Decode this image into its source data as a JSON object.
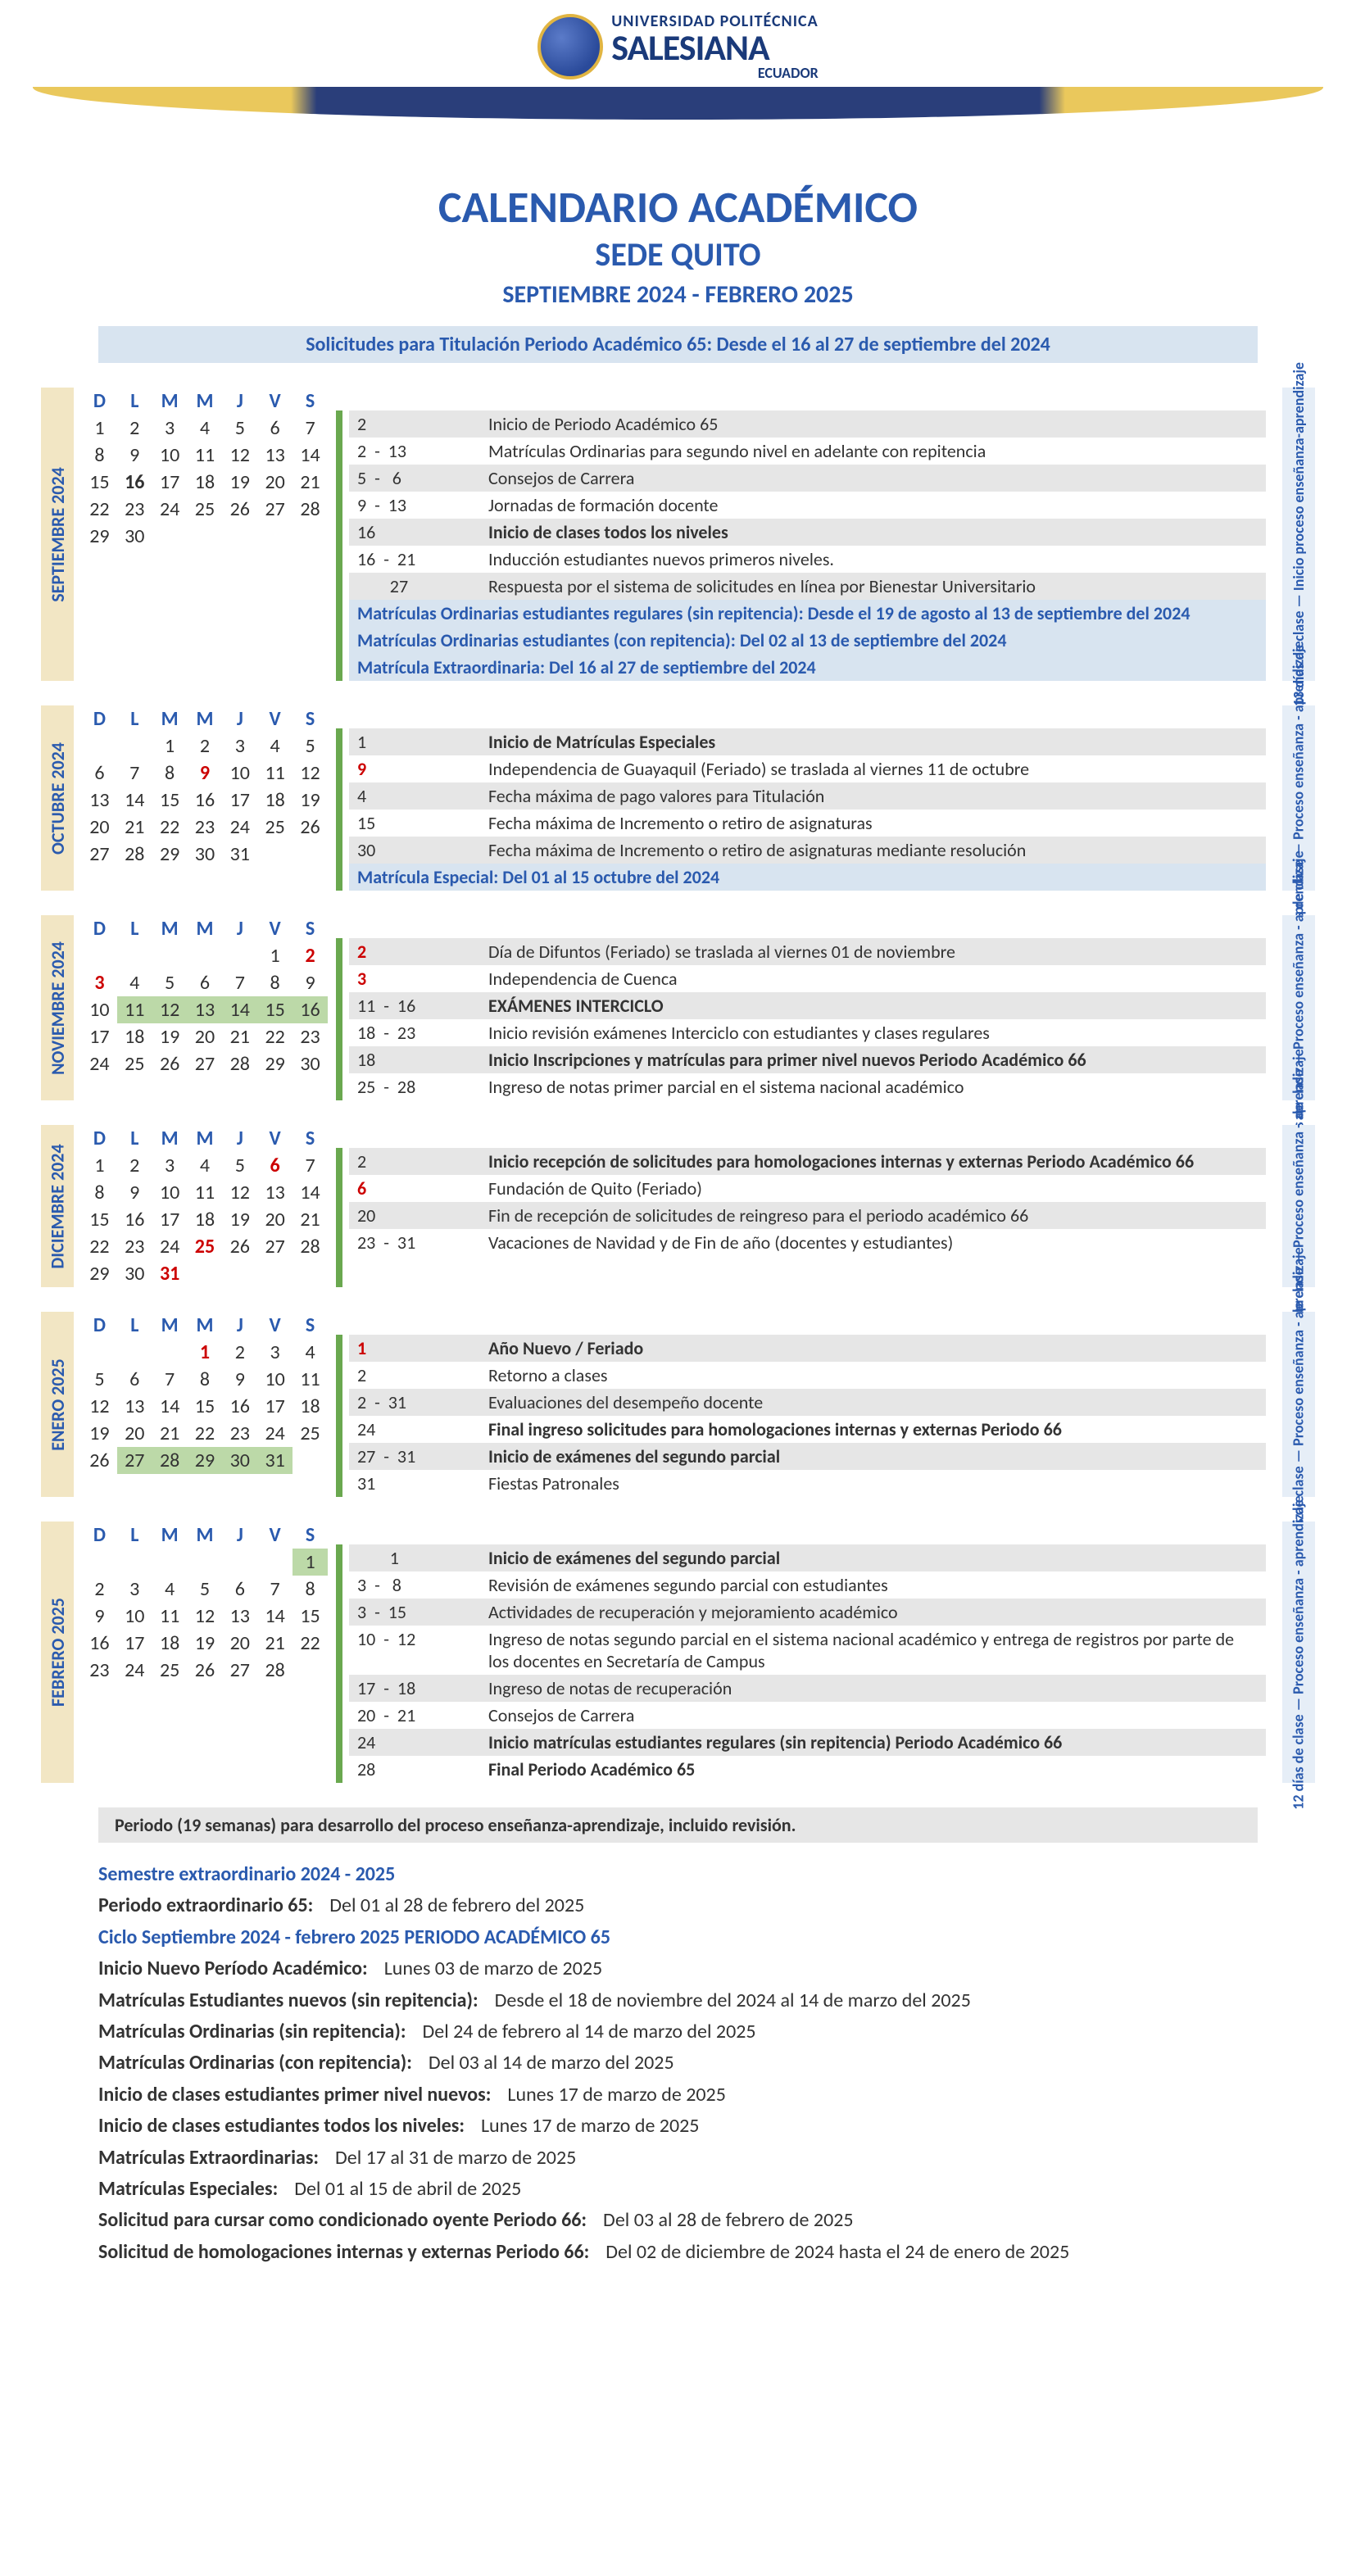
{
  "logo": {
    "line1": "UNIVERSIDAD POLITÉCNICA",
    "line2": "SALESIANA",
    "line3": "ECUADOR"
  },
  "title1": "CALENDARIO ACADÉMICO",
  "title2": "SEDE QUITO",
  "title3": "SEPTIEMBRE 2024 - FEBRERO 2025",
  "banner": "Solicitudes para Titulación Periodo Académico 65: Desde el 16 al 27  de septiembre del 2024",
  "dayHeaders": [
    "D",
    "L",
    "M",
    "M",
    "J",
    "V",
    "S"
  ],
  "colors": {
    "brand_blue": "#2a5aae",
    "cream": "#f2e6c4",
    "green_bar": "#6aa84f",
    "grey_row": "#e6e6e6",
    "blue_row": "#d8e4f0",
    "light_blue_side": "#e6eef7",
    "red": "#c00",
    "hl_green": "#bcd9a8"
  },
  "months": [
    {
      "label": "SEPTIEMBRE 2024",
      "side": "13 días de clase — Inicio proceso enseñanza-aprendizaje",
      "startDow": 0,
      "numDays": 30,
      "red": [],
      "bold": [
        16
      ],
      "hl": [],
      "events": [
        {
          "r": "2",
          "t": "Inicio de Periodo Académico 65",
          "g": true
        },
        {
          "r": "2  -  13",
          "t": "Matrículas Ordinarias para segundo nivel en adelante con repitencia"
        },
        {
          "r": "5  -   6",
          "t": "Consejos de Carrera",
          "g": true
        },
        {
          "r": "9  -  13",
          "t": "Jornadas de formación docente"
        },
        {
          "r": "16",
          "t": "Inicio de clases todos los niveles",
          "g": true,
          "b": true
        },
        {
          "r": "16  -  21",
          "t": "Inducción estudiantes nuevos primeros niveles."
        },
        {
          "r": "        27",
          "t": "Respuesta por el sistema de solicitudes en línea por Bienestar Universitario",
          "g": true
        },
        {
          "blue": true,
          "t": "Matrículas Ordinarias estudiantes regulares (sin repitencia): Desde el 19 de agosto al 13 de septiembre del 2024"
        },
        {
          "blue": true,
          "t": "Matrículas Ordinarias estudiantes (con repitencia): Del 02 al 13 de septiembre del 2024"
        },
        {
          "blue": true,
          "t": "Matrícula Extraordinaria: Del 16 al 27 de septiembre del 2024"
        }
      ]
    },
    {
      "label": "OCTUBRE 2024",
      "side": "26  días de clase — Proceso enseñanza - aprendizaje",
      "startDow": 2,
      "numDays": 31,
      "red": [
        9
      ],
      "bold": [],
      "hl": [],
      "events": [
        {
          "r": "1",
          "t": "Inicio de Matrículas Especiales",
          "g": true,
          "b": true
        },
        {
          "r": "9",
          "t": "Independencia de Guayaquil (Feriado) se traslada al viernes 11 de octubre",
          "red": true
        },
        {
          "r": "4",
          "t": "Fecha máxima de pago valores para Titulación",
          "g": true
        },
        {
          "r": "15",
          "t": "Fecha máxima de Incremento o retiro de asignaturas"
        },
        {
          "r": "30",
          "t": "Fecha máxima de Incremento o retiro de asignaturas mediante resolución",
          "g": true
        },
        {
          "blue": true,
          "t": "Matrícula Especial: Del 01 al 15 octubre del 2024"
        }
      ]
    },
    {
      "label": "NOVIEMBRE 2024",
      "side": "19  días de clase — Proceso enseñanza - aprendizaje",
      "startDow": 5,
      "numDays": 30,
      "red": [
        2,
        3
      ],
      "bold": [],
      "hl": [
        11,
        12,
        13,
        14,
        15,
        16
      ],
      "events": [
        {
          "r": "2",
          "t": "Día de Difuntos (Feriado) se traslada al viernes 01 de noviembre",
          "g": true,
          "red": true
        },
        {
          "r": "3",
          "t": "Independencia de Cuenca",
          "red": true
        },
        {
          "r": "11  -  16",
          "t": "EXÁMENES INTERCICLO",
          "g": true,
          "b": true
        },
        {
          "r": "18  -  23",
          "t": "Inicio revisión exámenes Interciclo con estudiantes y clases regulares"
        },
        {
          "r": "18",
          "t": "Inicio Inscripciones y matrículas para primer nivel nuevos Periodo Académico 66",
          "g": true,
          "b": true
        },
        {
          "r": "25  -  28",
          "t": "Ingreso de notas primer parcial en el sistema nacional académico"
        }
      ]
    },
    {
      "label": "DICIEMBRE 2024",
      "side": "17  días de clase — Proceso enseñanza - aprendizaje",
      "startDow": 0,
      "numDays": 31,
      "red": [
        6,
        25,
        31
      ],
      "bold": [],
      "hl": [],
      "events": [
        {
          "r": "2",
          "t": "Inicio recepción de solicitudes para homologaciones internas y externas Periodo Académico 66",
          "g": true,
          "b": true
        },
        {
          "r": "6",
          "t": "Fundación de Quito (Feriado)",
          "red": true
        },
        {
          "r": "20",
          "t": "Fin de recepción de solicitudes de reingreso para el periodo académico 66",
          "g": true
        },
        {
          "r": "23  -  31",
          "t": "Vacaciones de Navidad y de Fin de año (docentes y estudiantes)"
        }
      ]
    },
    {
      "label": "ENERO 2025",
      "side": "21  días de clase — Proceso enseñanza - aprendizaje",
      "startDow": 3,
      "numDays": 31,
      "red": [
        1
      ],
      "bold": [],
      "hl": [
        27,
        28,
        29,
        30,
        31
      ],
      "events": [
        {
          "r": "1",
          "t": "Año Nuevo / Feriado",
          "g": true,
          "b": true,
          "red": true
        },
        {
          "r": "2",
          "t": "Retorno a clases"
        },
        {
          "r": "2  -  31",
          "t": "Evaluaciones del desempeño docente",
          "g": true
        },
        {
          "r": "24",
          "t": "Final ingreso solicitudes para homologaciones internas y externas Periodo 66",
          "b": true
        },
        {
          "r": "27  -  31",
          "t": "Inicio de exámenes del segundo parcial",
          "g": true,
          "b": true
        },
        {
          "r": "31",
          "t": "Fiestas Patronales"
        }
      ]
    },
    {
      "label": "FEBRERO 2025",
      "side": "12 días de clase — Proceso enseñanza - aprendizaje",
      "startDow": 6,
      "numDays": 28,
      "red": [],
      "bold": [],
      "hl": [
        1
      ],
      "events": [
        {
          "r": "        1",
          "t": "Inicio de exámenes del segundo parcial",
          "g": true,
          "b": true
        },
        {
          "r": "3  -   8",
          "t": "Revisión de exámenes segundo parcial con estudiantes"
        },
        {
          "r": "3  -  15",
          "t": "Actividades de recuperación y mejoramiento académico",
          "g": true
        },
        {
          "r": "10  -  12",
          "t": "Ingreso de notas segundo parcial en el sistema nacional académico y entrega de registros por parte de los docentes en Secretaría de Campus"
        },
        {
          "r": "17  -  18",
          "t": "Ingreso de notas de recuperación",
          "g": true
        },
        {
          "r": "20  -  21",
          "t": "Consejos de Carrera"
        },
        {
          "r": "24",
          "t": "Inicio matrículas estudiantes regulares (sin repitencia) Periodo Académico 66",
          "g": true,
          "b": true
        },
        {
          "r": "28",
          "t": "Final Periodo Académico 65",
          "b": true
        }
      ]
    }
  ],
  "note": "Periodo (19 semanas)  para desarrollo del proceso enseñanza-aprendizaje, incluido revisión.",
  "footer": {
    "h1": "Semestre extraordinario 2024 - 2025",
    "rows1": [
      {
        "k": "Periodo extraordinario 65:",
        "v": "Del 01 al 28 de febrero del 2025"
      }
    ],
    "h2": "Ciclo Septiembre 2024 - febrero 2025 PERIODO ACADÉMICO 65",
    "rows2": [
      {
        "k": "Inicio Nuevo Período Académico:",
        "v": "Lunes 03 de marzo de 2025"
      },
      {
        "k": "Matrículas Estudiantes nuevos (sin repitencia):",
        "v": "Desde el 18 de noviembre del 2024 al 14 de marzo del 2025"
      },
      {
        "k": "Matrículas Ordinarias (sin repitencia):",
        "v": "Del 24 de febrero al 14 de marzo del 2025"
      },
      {
        "k": "Matrículas Ordinarias (con repitencia):",
        "v": "Del 03 al 14 de marzo del 2025"
      },
      {
        "k": "Inicio de clases estudiantes primer nivel nuevos:",
        "v": "Lunes 17 de marzo de 2025"
      },
      {
        "k": "Inicio de clases estudiantes todos los niveles:",
        "v": "Lunes 17 de marzo de 2025"
      },
      {
        "k": "Matrículas Extraordinarias:",
        "v": "Del 17 al 31 de marzo de 2025"
      },
      {
        "k": "Matrículas Especiales:",
        "v": "Del 01 al 15 de abril de 2025"
      },
      {
        "k": "Solicitud para cursar como condicionado oyente Periodo 66:",
        "v": "Del 03 al 28 de febrero de 2025"
      },
      {
        "k": "Solicitud de homologaciones internas y externas Periodo 66:",
        "v": "Del 02 de diciembre de 2024 hasta el 24 de enero de 2025"
      }
    ]
  }
}
